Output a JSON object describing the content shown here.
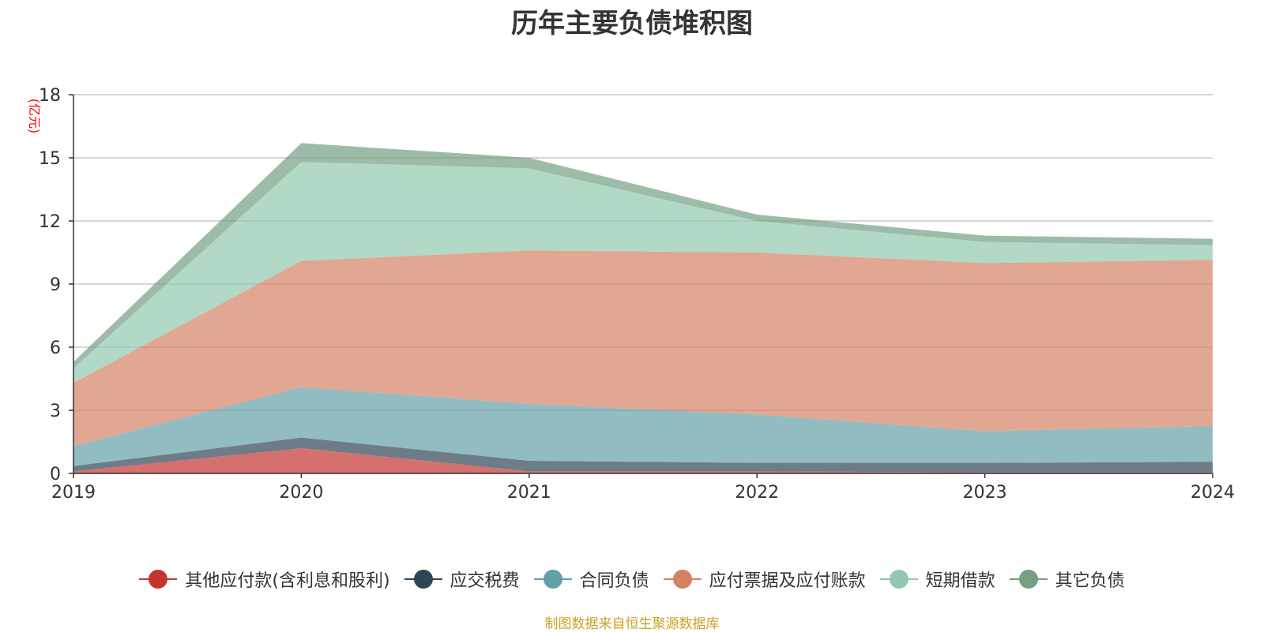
{
  "chart_data": {
    "type": "area",
    "title": "历年主要负债堆积图",
    "ylabel": "(亿元)",
    "stacked": true,
    "grid": true,
    "legend_position": "bottom",
    "ylim": [
      0,
      18
    ],
    "yticks": [
      "0",
      "3",
      "6",
      "9",
      "12",
      "15",
      "18"
    ],
    "categories": [
      "2019",
      "2020",
      "2021",
      "2022",
      "2023",
      "2024"
    ],
    "series": [
      {
        "name": "其他应付款(含利息和股利)",
        "color": "#c23531",
        "values": [
          0.1,
          1.2,
          0.1,
          0.1,
          0.05,
          0.05
        ]
      },
      {
        "name": "应交税费",
        "color": "#2f4554",
        "values": [
          0.25,
          0.5,
          0.5,
          0.4,
          0.45,
          0.5
        ]
      },
      {
        "name": "合同负债",
        "color": "#61a0a8",
        "values": [
          0.95,
          2.4,
          2.7,
          2.3,
          1.5,
          1.7
        ]
      },
      {
        "name": "应付票据及应付账款",
        "color": "#d48265",
        "values": [
          3.0,
          6.0,
          7.3,
          7.7,
          8.0,
          7.9
        ]
      },
      {
        "name": "短期借款",
        "color": "#91c7ae",
        "values": [
          0.7,
          4.7,
          3.9,
          1.5,
          1.0,
          0.7
        ]
      },
      {
        "name": "其它负债",
        "color": "#749f83",
        "values": [
          0.3,
          0.9,
          0.5,
          0.3,
          0.3,
          0.3
        ]
      }
    ],
    "source_note": "制图数据来自恒生聚源数据库"
  }
}
